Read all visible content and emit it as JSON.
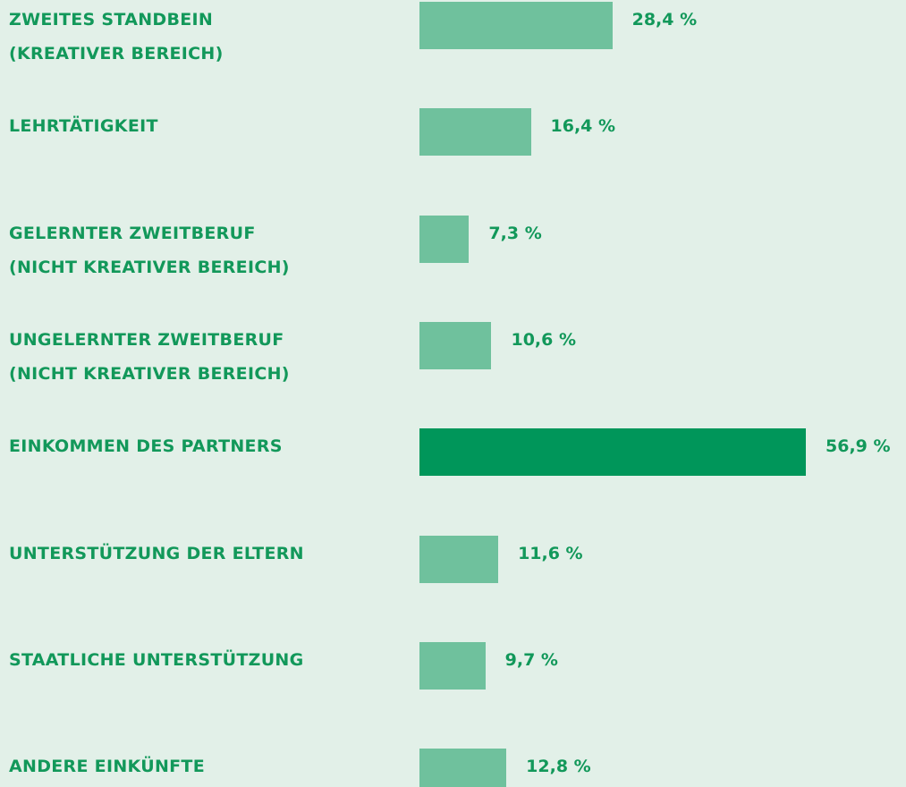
{
  "chart_data": {
    "type": "barh",
    "categories": [
      "ZWEITES STANDBEIN\n(KREATIVER BEREICH)",
      "LEHRTÄTIGKEIT",
      "GELERNTER ZWEITBERUF\n(NICHT KREATIVER BEREICH)",
      "UNGELERNTER ZWEITBERUF\n(NICHT KREATIVER BEREICH)",
      "EINKOMMEN DES PARTNERS",
      "UNTERSTÜTZUNG DER ELTERN",
      "STAATLICHE UNTERSTÜTZUNG",
      "ANDERE EINKÜNFTE"
    ],
    "values": [
      28.4,
      16.4,
      7.3,
      10.6,
      56.9,
      11.6,
      9.7,
      12.8
    ],
    "value_labels": [
      "28,4 %",
      "16,4 %",
      "7,3 %",
      "10,6 %",
      "56,9 %",
      "11,6 %",
      "9,7 %",
      "12,8 %"
    ],
    "colors": [
      "#6fc19d",
      "#6fc19d",
      "#6fc19d",
      "#6fc19d",
      "#00965a",
      "#6fc19d",
      "#6fc19d",
      "#6fc19d"
    ]
  }
}
